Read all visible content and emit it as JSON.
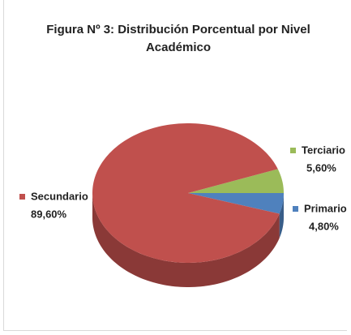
{
  "chart_data": {
    "type": "pie",
    "title": "Figura Nº 3: Distribución Porcentual por Nivel Académico",
    "categories": [
      "Terciario",
      "Primario",
      "Secundario"
    ],
    "values": [
      5.6,
      4.8,
      89.6
    ],
    "value_labels": [
      "5,60%",
      "4,80%",
      "89,60%"
    ],
    "colors": [
      "#9bbb59",
      "#4f81bd",
      "#c0504d"
    ]
  }
}
